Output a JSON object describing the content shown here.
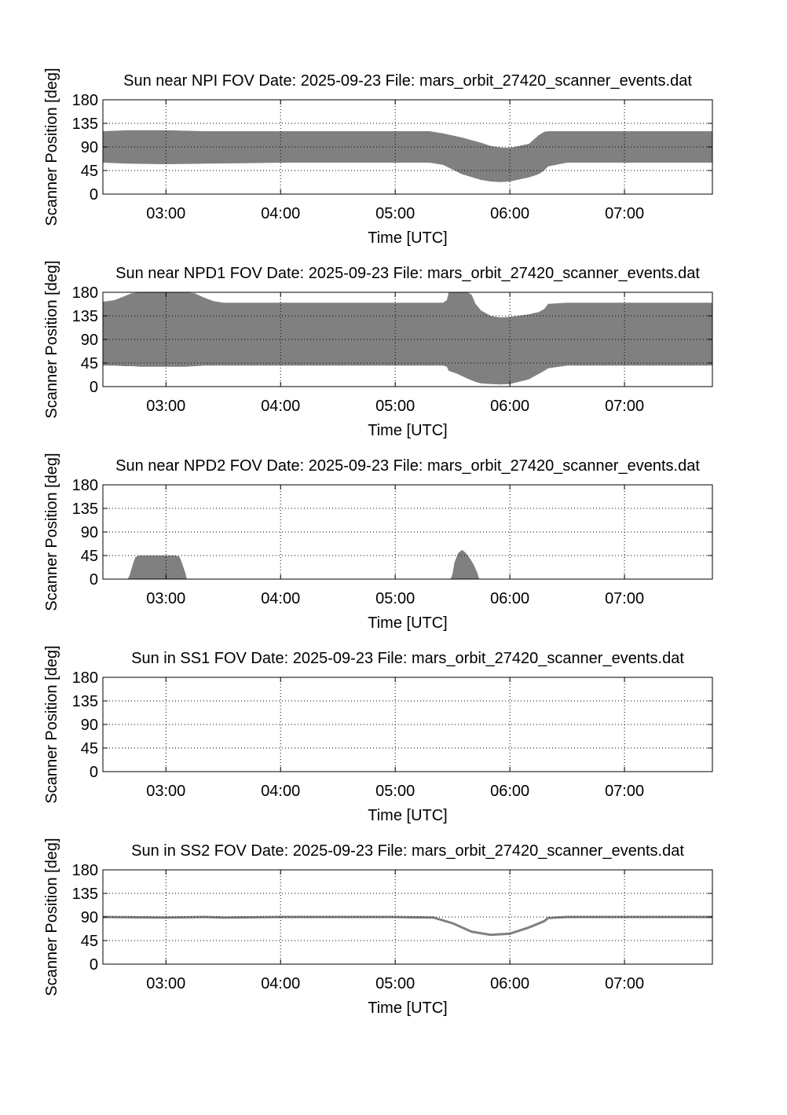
{
  "figure": {
    "fill_color": "#808080",
    "line_color": "#808080",
    "background": "#ffffff"
  },
  "chart_data": [
    {
      "type": "area",
      "title": "Sun near NPI FOV   Date: 2025-09-23   File: mars_orbit_27420_scanner_events.dat",
      "xlabel": "Time [UTC]",
      "ylabel": "Scanner Position [deg]",
      "xlim": [
        "02:27",
        "07:46"
      ],
      "ylim": [
        0,
        180
      ],
      "xticks": [
        "03:00",
        "04:00",
        "05:00",
        "06:00",
        "07:00"
      ],
      "yticks": [
        "0",
        "45",
        "90",
        "135",
        "180"
      ],
      "grid": true,
      "x": [
        "02:27",
        "02:40",
        "03:00",
        "03:20",
        "03:40",
        "04:00",
        "04:30",
        "05:00",
        "05:18",
        "05:25",
        "05:35",
        "05:45",
        "05:50",
        "05:55",
        "06:00",
        "06:10",
        "06:15",
        "06:18",
        "06:20",
        "06:30",
        "07:00",
        "07:46"
      ],
      "upper": [
        120,
        122,
        122,
        120,
        120,
        120,
        120,
        120,
        120,
        116,
        108,
        98,
        92,
        89,
        88,
        96,
        112,
        119,
        120,
        120,
        120,
        120
      ],
      "lower": [
        60,
        58,
        57,
        58,
        59,
        60,
        60,
        60,
        60,
        56,
        38,
        27,
        24,
        23,
        24,
        32,
        38,
        45,
        53,
        60,
        60,
        60
      ]
    },
    {
      "type": "area",
      "title": "Sun near NPD1 FOV   Date: 2025-09-23   File: mars_orbit_27420_scanner_events.dat",
      "xlabel": "Time [UTC]",
      "ylabel": "Scanner Position [deg]",
      "xlim": [
        "02:27",
        "07:46"
      ],
      "ylim": [
        0,
        180
      ],
      "xticks": [
        "03:00",
        "04:00",
        "05:00",
        "06:00",
        "07:00"
      ],
      "yticks": [
        "0",
        "45",
        "90",
        "135",
        "180"
      ],
      "grid": true,
      "x": [
        "02:27",
        "02:33",
        "02:38",
        "02:42",
        "02:47",
        "03:10",
        "03:15",
        "03:20",
        "03:25",
        "03:30",
        "04:00",
        "05:00",
        "05:25",
        "05:27",
        "05:28",
        "05:32",
        "05:38",
        "05:40",
        "05:42",
        "05:45",
        "05:50",
        "05:55",
        "06:00",
        "06:10",
        "06:12",
        "06:15",
        "06:18",
        "06:20",
        "06:30",
        "07:00",
        "07:46"
      ],
      "upper": [
        162,
        165,
        172,
        178,
        180,
        180,
        178,
        170,
        163,
        160,
        160,
        160,
        160,
        165,
        180,
        180,
        180,
        175,
        158,
        145,
        135,
        132,
        133,
        138,
        140,
        142,
        148,
        158,
        160,
        160,
        160
      ],
      "lower": [
        40,
        40,
        39,
        39,
        38,
        38,
        39,
        40,
        40,
        40,
        40,
        40,
        40,
        38,
        30,
        25,
        15,
        12,
        9,
        6,
        5,
        4,
        5,
        14,
        18,
        24,
        30,
        35,
        40,
        40,
        40
      ]
    },
    {
      "type": "area",
      "title": "Sun near NPD2 FOV   Date: 2025-09-23   File: mars_orbit_27420_scanner_events.dat",
      "xlabel": "Time [UTC]",
      "ylabel": "Scanner Position [deg]",
      "xlim": [
        "02:27",
        "07:46"
      ],
      "ylim": [
        0,
        180
      ],
      "xticks": [
        "03:00",
        "04:00",
        "05:00",
        "06:00",
        "07:00"
      ],
      "yticks": [
        "0",
        "45",
        "90",
        "135",
        "180"
      ],
      "grid": true,
      "x": [
        "02:27",
        "02:40",
        "02:41",
        "02:43",
        "02:44",
        "02:46",
        "03:05",
        "03:07",
        "03:08",
        "03:10",
        "03:11",
        "05:29",
        "05:30",
        "05:31",
        "05:33",
        "05:35",
        "05:37",
        "05:39",
        "05:41",
        "05:43",
        "05:44",
        "07:46"
      ],
      "upper": [
        0,
        0,
        8,
        32,
        42,
        45,
        45,
        43,
        35,
        14,
        0,
        0,
        10,
        32,
        50,
        56,
        50,
        40,
        28,
        12,
        0,
        0
      ],
      "lower": [
        0,
        0,
        0,
        0,
        0,
        0,
        0,
        0,
        0,
        0,
        0,
        0,
        0,
        0,
        0,
        0,
        0,
        0,
        0,
        0,
        0,
        0
      ]
    },
    {
      "type": "area",
      "title": "Sun in SS1 FOV   Date: 2025-09-23   File: mars_orbit_27420_scanner_events.dat",
      "xlabel": "Time [UTC]",
      "ylabel": "Scanner Position [deg]",
      "xlim": [
        "02:27",
        "07:46"
      ],
      "ylim": [
        0,
        180
      ],
      "xticks": [
        "03:00",
        "04:00",
        "05:00",
        "06:00",
        "07:00"
      ],
      "yticks": [
        "0",
        "45",
        "90",
        "135",
        "180"
      ],
      "grid": true,
      "x": [],
      "upper": [],
      "lower": []
    },
    {
      "type": "line",
      "title": "Sun in SS2 FOV   Date: 2025-09-23   File: mars_orbit_27420_scanner_events.dat",
      "xlabel": "Time [UTC]",
      "ylabel": "Scanner Position [deg]",
      "xlim": [
        "02:27",
        "07:46"
      ],
      "ylim": [
        0,
        180
      ],
      "xticks": [
        "03:00",
        "04:00",
        "05:00",
        "06:00",
        "07:00"
      ],
      "yticks": [
        "0",
        "45",
        "90",
        "135",
        "180"
      ],
      "grid": true,
      "x": [
        "02:27",
        "03:00",
        "03:20",
        "03:30",
        "04:00",
        "05:00",
        "05:20",
        "05:30",
        "05:40",
        "05:50",
        "06:00",
        "06:10",
        "06:18",
        "06:20",
        "06:30",
        "07:00",
        "07:46"
      ],
      "y": [
        90,
        89,
        90,
        89,
        90,
        90,
        89,
        78,
        62,
        56,
        58,
        70,
        82,
        88,
        90,
        90,
        90
      ]
    }
  ]
}
